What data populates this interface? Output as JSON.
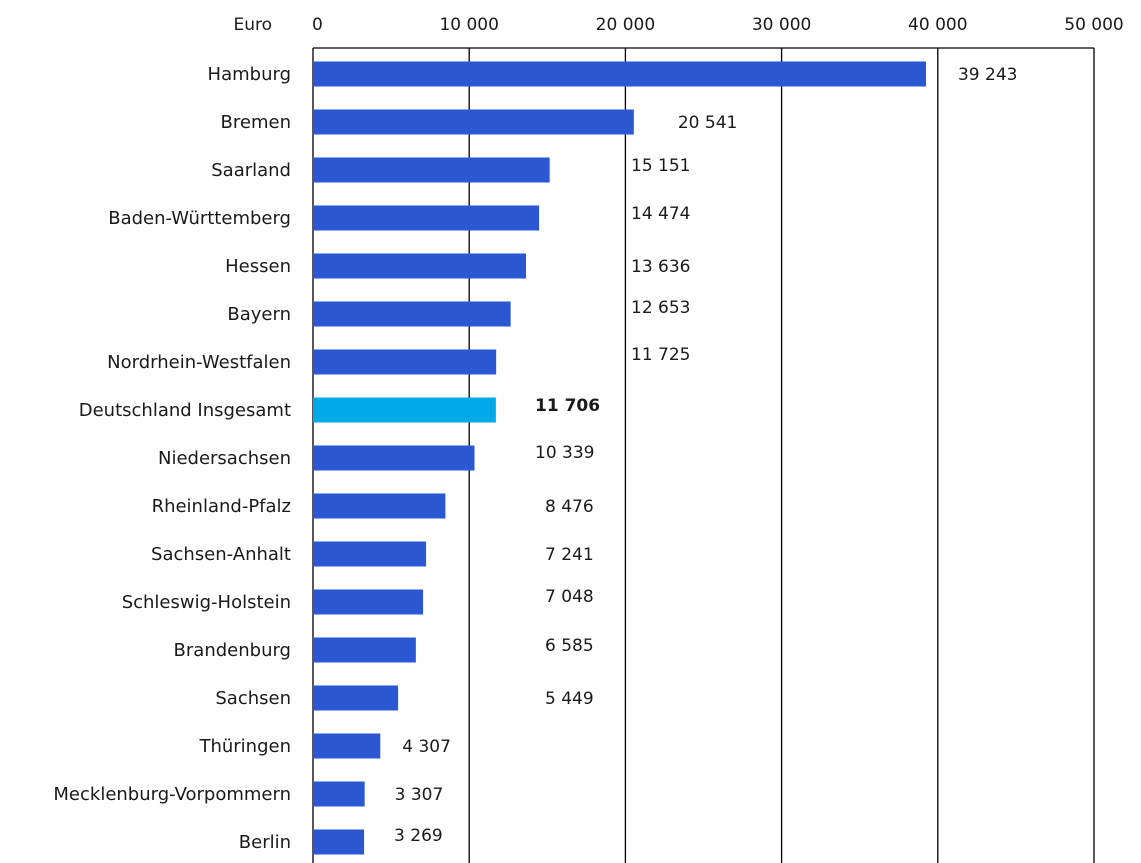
{
  "chart_data": {
    "type": "bar",
    "orientation": "horizontal",
    "unit_label": "Euro",
    "xlim": [
      0,
      50000
    ],
    "x_ticks": [
      {
        "value": 0,
        "label": "0"
      },
      {
        "value": 10000,
        "label": "10 000"
      },
      {
        "value": 20000,
        "label": "20 000"
      },
      {
        "value": 30000,
        "label": "30 000"
      },
      {
        "value": 40000,
        "label": "40 000"
      },
      {
        "value": 50000,
        "label": "50 000"
      }
    ],
    "grid": true,
    "colors": {
      "bar": "#2b57d3",
      "highlight": "#00aae8"
    },
    "categories": [
      "Hamburg",
      "Bremen",
      "Saarland",
      "Baden-Württemberg",
      "Hessen",
      "Bayern",
      "Nordrhein-Westfalen",
      "Deutschland Insgesamt",
      "Niedersachsen",
      "Rheinland-Pfalz",
      "Sachsen-Anhalt",
      "Schleswig-Holstein",
      "Brandenburg",
      "Sachsen",
      "Thüringen",
      "Mecklenburg-Vorpommern",
      "Berlin"
    ],
    "values": [
      39243,
      20541,
      15151,
      14474,
      13636,
      12653,
      11725,
      11706,
      10339,
      8476,
      7241,
      7048,
      6585,
      5449,
      4307,
      3307,
      3269
    ],
    "value_labels": [
      "39 243",
      "20 541",
      "15 151",
      "14 474",
      "13 636",
      "12 653",
      "11 725",
      "11 706",
      "10 339",
      "8 476",
      "7 241",
      "7 048",
      "6 585",
      "5 449",
      "4 307",
      "3 307",
      "3 269"
    ],
    "highlight": "Deutschland Insgesamt"
  }
}
